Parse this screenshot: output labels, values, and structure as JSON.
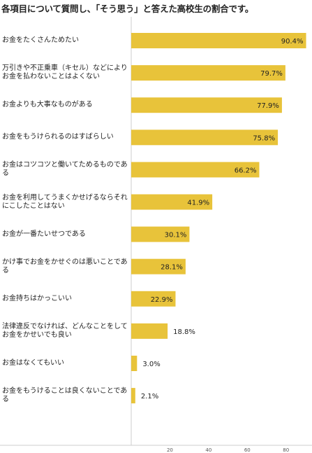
{
  "chart_data": {
    "type": "bar",
    "orientation": "horizontal",
    "title": "各項目について質問し、「そう思う」と答えた高校生の割合です。",
    "xlabel": "",
    "ylabel": "",
    "categories": [
      "お金をたくさんためたい",
      "万引きや不正乗車（キセル）などによりお金を払わないことはよくない",
      "お金よりも大事なものがある",
      "お金をもうけられるのはすばらしい",
      "お金はコツコツと働いてためるものである",
      "お金を利用してうまくかせげるならそれにこしたことはない",
      "お金が一番たいせつである",
      "かけ事でお金をかせぐのは悪いことである",
      "お金持ちはかっこいい",
      "法律違反でなければ、どんなことをしてお金をかせいでも良い",
      "お金はなくてもいい",
      "お金をもうけることは良くないことである"
    ],
    "values": [
      90.4,
      79.7,
      77.9,
      75.8,
      66.2,
      41.9,
      30.1,
      28.1,
      22.9,
      18.8,
      3.0,
      2.1
    ],
    "value_labels": [
      "90.4%",
      "79.7%",
      "77.9%",
      "75.8%",
      "66.2%",
      "41.9%",
      "30.1%",
      "28.1%",
      "22.9%",
      "18.8%",
      "3.0%",
      "2.1%"
    ],
    "xlim": [
      0,
      92
    ],
    "x_ticks": [
      20,
      40,
      60,
      80
    ],
    "x_tick_labels": [
      "20",
      "40",
      "60",
      "80"
    ],
    "grid": false,
    "legend": "none",
    "bar_color": "#e8c33a",
    "axis_color": "#cccccc"
  }
}
